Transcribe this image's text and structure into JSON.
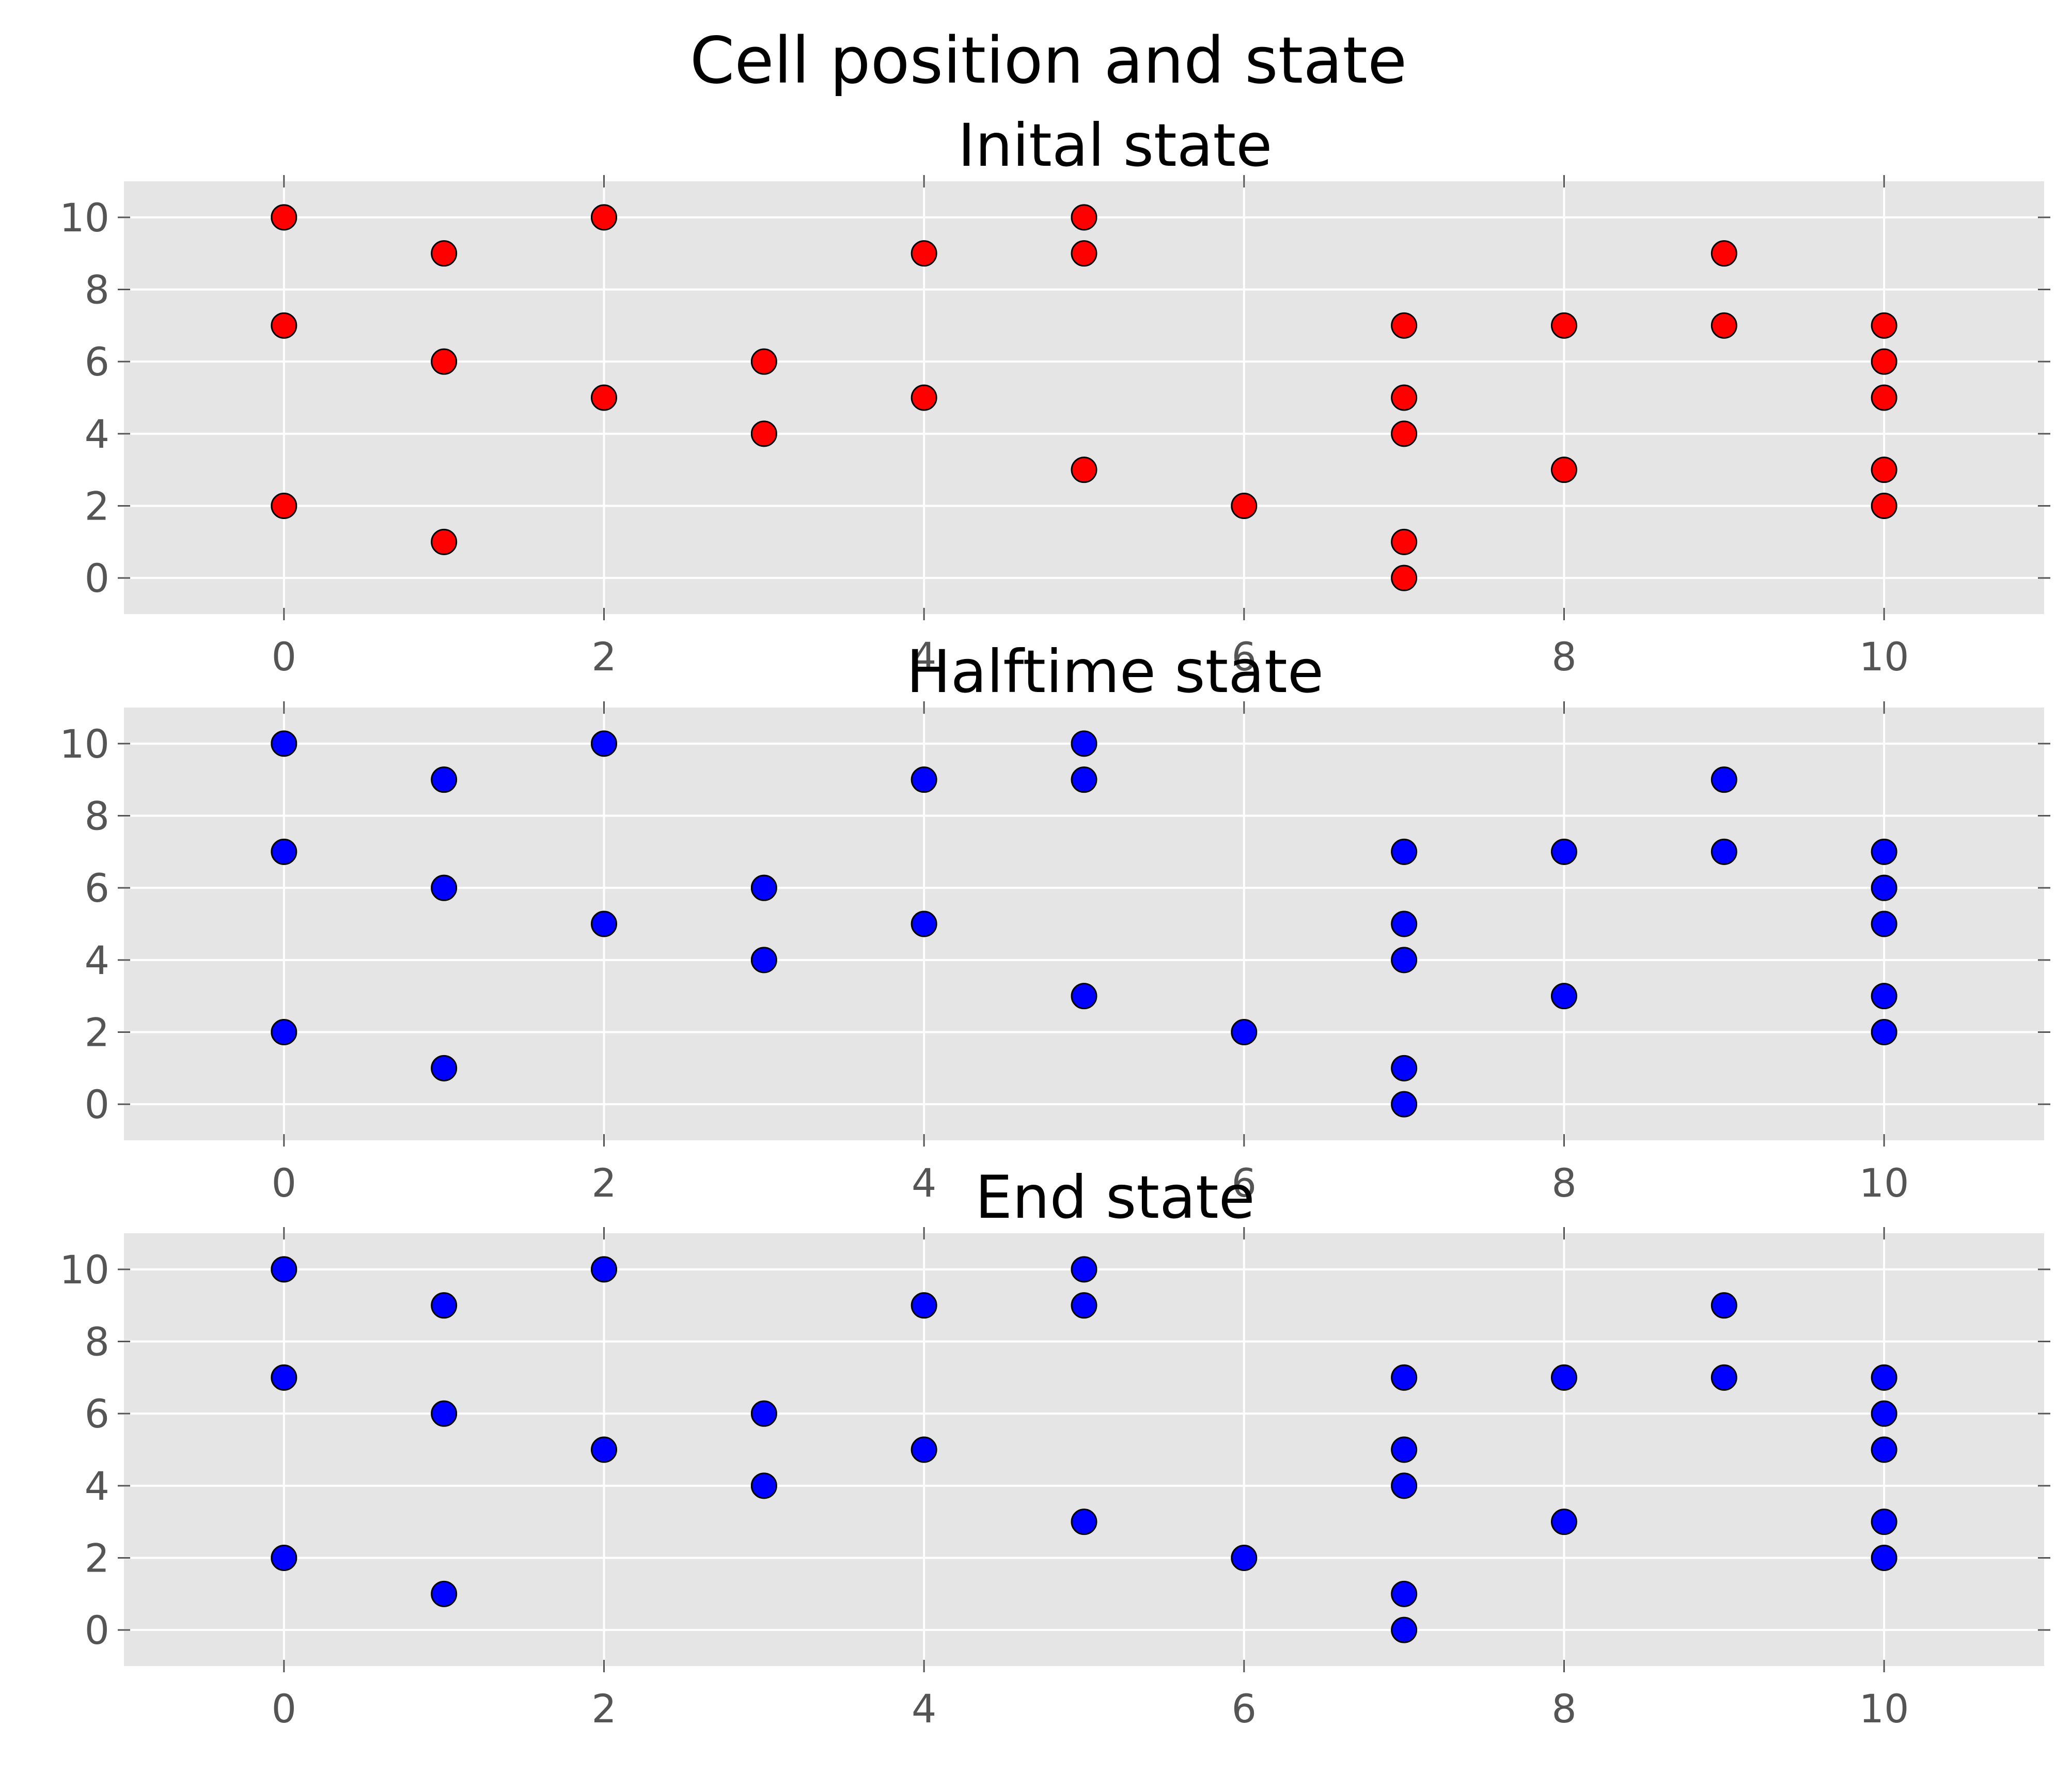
{
  "chart_data": {
    "type": "scatter",
    "title": "Cell position and state",
    "x": [
      0,
      1,
      2,
      3,
      4,
      5,
      6,
      7,
      8,
      9,
      10,
      0,
      1,
      2,
      3,
      4,
      5,
      7,
      8,
      9,
      10,
      0,
      1,
      2,
      3,
      4,
      5,
      7,
      8,
      9,
      10,
      0,
      1,
      2,
      4,
      5,
      7,
      10,
      10,
      7,
      7,
      10
    ],
    "xlim": [
      -1,
      11
    ],
    "ylim": [
      -1,
      11
    ],
    "xticks": [
      "0",
      "2",
      "4",
      "6",
      "8",
      "10"
    ],
    "yticks": [
      "0",
      "2",
      "4",
      "6",
      "8",
      "10"
    ],
    "grid": true,
    "points": [
      [
        0,
        10
      ],
      [
        0,
        7
      ],
      [
        0,
        2
      ],
      [
        1,
        9
      ],
      [
        1,
        6
      ],
      [
        1,
        1
      ],
      [
        2,
        10
      ],
      [
        2,
        5
      ],
      [
        3,
        6
      ],
      [
        3,
        4
      ],
      [
        4,
        9
      ],
      [
        4,
        5
      ],
      [
        5,
        10
      ],
      [
        5,
        9
      ],
      [
        5,
        3
      ],
      [
        6,
        2
      ],
      [
        7,
        7
      ],
      [
        7,
        5
      ],
      [
        7,
        4
      ],
      [
        7,
        1
      ],
      [
        7,
        0
      ],
      [
        8,
        7
      ],
      [
        8,
        3
      ],
      [
        9,
        9
      ],
      [
        9,
        7
      ],
      [
        10,
        7
      ],
      [
        10,
        6
      ],
      [
        10,
        5
      ],
      [
        10,
        3
      ],
      [
        10,
        2
      ]
    ],
    "panels": [
      {
        "title": "Inital state",
        "color": "#ff0000"
      },
      {
        "title": "Halftime state",
        "color": "#0000ff"
      },
      {
        "title": "End state",
        "color": "#0000ff"
      }
    ]
  }
}
